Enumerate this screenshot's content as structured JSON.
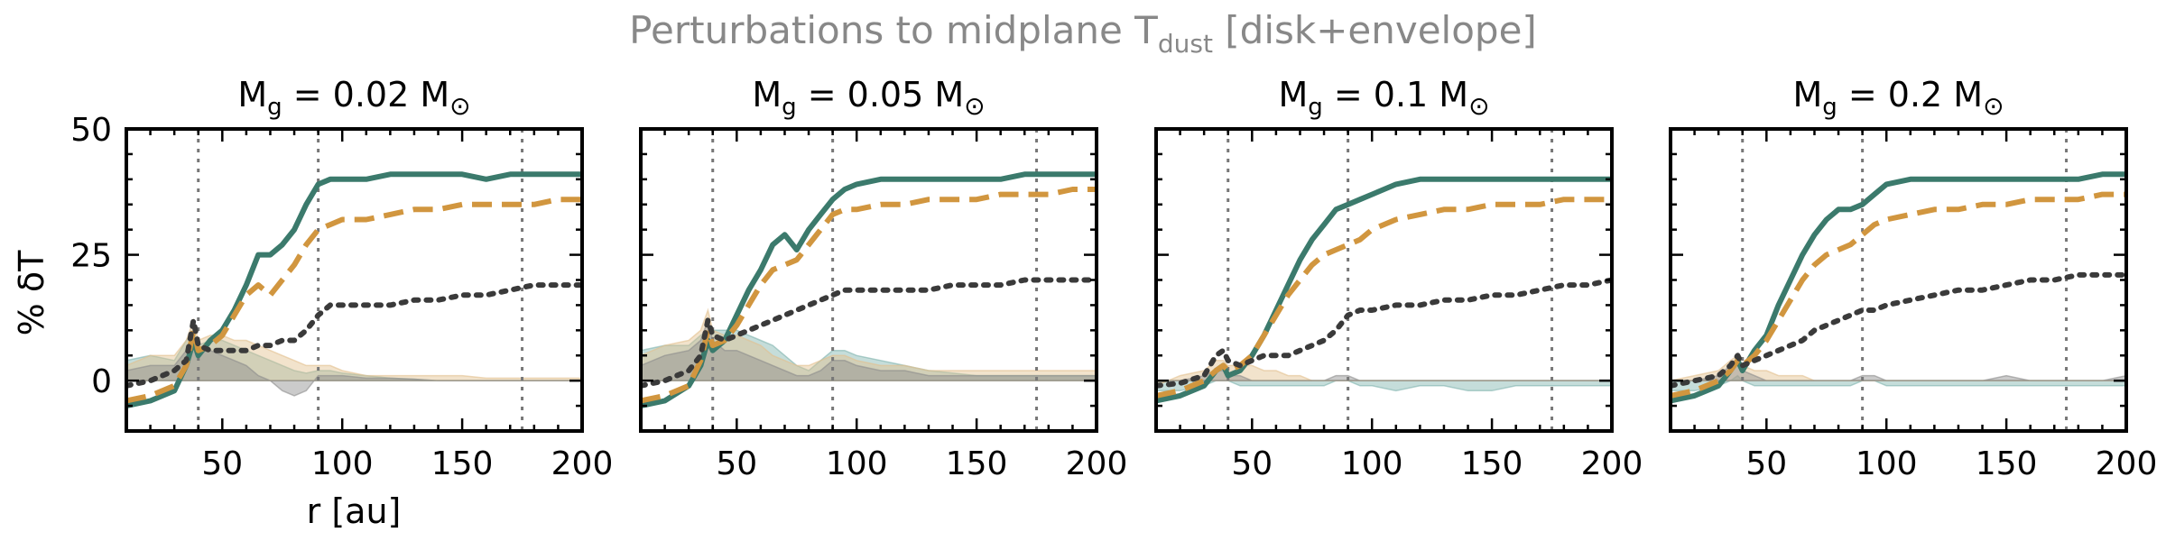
{
  "figure": {
    "suptitle_main": "Perturbations to midplane T",
    "suptitle_sub": "dust",
    "suptitle_tail": " [disk+envelope]",
    "ylabel": "% δT",
    "xlabel": "r [au]"
  },
  "colors": {
    "series_solid": "#3b7a6c",
    "series_dashed": "#d1963f",
    "series_dotted": "#3a3a3a",
    "band_teal": "#7fb3ad",
    "band_tan": "#e3c08e",
    "band_gray": "#8c8c8c",
    "vlines": "#777777",
    "zero_line": "#9a9a9a",
    "suptitle": "#888888"
  },
  "chart_data": [
    {
      "type": "line",
      "title_main": "M",
      "title_sub": "g",
      "title_eq": " = 0.02 M",
      "title_sun": "⊙",
      "xlim": [
        10,
        200
      ],
      "ylim": [
        -10,
        50
      ],
      "xticks": [
        50,
        100,
        150,
        200
      ],
      "yticks": [
        0,
        25,
        50
      ],
      "vlines": [
        40,
        90,
        175
      ],
      "x": [
        10,
        20,
        30,
        35,
        38,
        40,
        45,
        50,
        55,
        60,
        65,
        70,
        75,
        80,
        85,
        90,
        95,
        100,
        110,
        120,
        130,
        140,
        150,
        160,
        170,
        180,
        190,
        200
      ],
      "series": [
        {
          "style": "solid",
          "values": [
            -5,
            -4,
            -2,
            3,
            8,
            5,
            8,
            10,
            14,
            19,
            25,
            25,
            27,
            30,
            35,
            39,
            40,
            40,
            40,
            41,
            41,
            41,
            41,
            40,
            41,
            41,
            41,
            41
          ]
        },
        {
          "style": "dashed",
          "values": [
            -4,
            -3,
            -1,
            3,
            10,
            6,
            7,
            9,
            13,
            17,
            19,
            17,
            20,
            23,
            27,
            30,
            31,
            32,
            32,
            33,
            34,
            34,
            35,
            35,
            35,
            35,
            36,
            36
          ]
        },
        {
          "style": "dotted",
          "values": [
            -1,
            0,
            2,
            4,
            12,
            7,
            6,
            6,
            6,
            6,
            7,
            7,
            8,
            8,
            10,
            13,
            15,
            15,
            15,
            15,
            16,
            16,
            17,
            17,
            18,
            19,
            19,
            19
          ]
        }
      ],
      "bands": [
        {
          "color": "teal",
          "values": [
            4,
            5,
            4,
            8,
            10,
            7,
            8,
            8,
            7,
            6,
            5,
            4,
            3,
            2,
            1.5,
            2,
            2,
            1.5,
            1,
            0.5,
            0.3,
            0,
            0,
            0,
            0,
            0,
            0,
            0
          ]
        },
        {
          "color": "tan",
          "values": [
            3,
            5,
            5,
            8,
            12,
            8,
            9,
            9,
            8,
            8,
            7,
            6,
            5,
            4,
            3,
            3,
            3,
            2,
            1,
            1,
            1,
            1,
            1,
            0.5,
            0.5,
            0.5,
            0.5,
            0.5
          ]
        },
        {
          "color": "gray",
          "values": [
            2,
            3,
            3,
            6,
            9,
            6,
            6,
            5,
            4,
            3,
            1,
            0,
            -2,
            -3,
            -2,
            1,
            1,
            1,
            0.5,
            0.5,
            0.3,
            0,
            0,
            0,
            0,
            0,
            0,
            0
          ]
        }
      ]
    },
    {
      "type": "line",
      "title_main": "M",
      "title_sub": "g",
      "title_eq": " = 0.05 M",
      "title_sun": "⊙",
      "xlim": [
        10,
        200
      ],
      "ylim": [
        -10,
        50
      ],
      "xticks": [
        50,
        100,
        150,
        200
      ],
      "yticks": [
        0,
        25,
        50
      ],
      "vlines": [
        40,
        90,
        175
      ],
      "x": [
        10,
        20,
        30,
        35,
        38,
        40,
        45,
        50,
        55,
        60,
        65,
        70,
        75,
        80,
        85,
        90,
        95,
        100,
        110,
        120,
        130,
        140,
        150,
        160,
        170,
        180,
        190,
        200
      ],
      "series": [
        {
          "style": "solid",
          "values": [
            -5,
            -4,
            -1,
            3,
            8,
            6,
            8,
            13,
            18,
            22,
            27,
            29,
            26,
            30,
            33,
            36,
            38,
            39,
            40,
            40,
            40,
            40,
            40,
            40,
            41,
            41,
            41,
            41
          ]
        },
        {
          "style": "dashed",
          "values": [
            -4,
            -3,
            -1,
            4,
            10,
            7,
            8,
            11,
            15,
            19,
            22,
            23,
            24,
            27,
            30,
            33,
            34,
            34,
            35,
            35,
            36,
            36,
            36,
            37,
            37,
            37,
            38,
            38
          ]
        },
        {
          "style": "dotted",
          "values": [
            -1,
            0,
            2,
            5,
            12,
            9,
            8,
            9,
            10,
            11,
            12,
            13,
            14,
            15,
            16,
            17,
            18,
            18,
            18,
            18,
            18,
            19,
            19,
            19,
            20,
            20,
            20,
            20
          ]
        }
      ],
      "bands": [
        {
          "color": "teal",
          "values": [
            6,
            7,
            7,
            9,
            10,
            10,
            10,
            10,
            9,
            8,
            7,
            5,
            3,
            2,
            4,
            6,
            6,
            5,
            4,
            3,
            2,
            1.5,
            1,
            1,
            1,
            1,
            1,
            1
          ]
        },
        {
          "color": "tan",
          "values": [
            5,
            7,
            8,
            10,
            14,
            10,
            9,
            9,
            8,
            7,
            5,
            4,
            3,
            3,
            4,
            5,
            5,
            4,
            3,
            3,
            2,
            2,
            2,
            2,
            2,
            2,
            2,
            2
          ]
        },
        {
          "color": "gray",
          "values": [
            3,
            5,
            6,
            8,
            12,
            8,
            6,
            6,
            5,
            4,
            3,
            2,
            1,
            1,
            2,
            4,
            4,
            3,
            2,
            2,
            1,
            1,
            1,
            1,
            1,
            1,
            1,
            1
          ]
        }
      ]
    },
    {
      "type": "line",
      "title_main": "M",
      "title_sub": "g",
      "title_eq": " = 0.1 M",
      "title_sun": "⊙",
      "xlim": [
        10,
        200
      ],
      "ylim": [
        -10,
        50
      ],
      "xticks": [
        50,
        100,
        150,
        200
      ],
      "yticks": [
        0,
        25,
        50
      ],
      "vlines": [
        40,
        90,
        175
      ],
      "x": [
        10,
        20,
        30,
        35,
        38,
        40,
        45,
        50,
        55,
        60,
        65,
        70,
        75,
        80,
        85,
        90,
        95,
        100,
        110,
        120,
        130,
        140,
        150,
        160,
        170,
        180,
        190,
        200
      ],
      "series": [
        {
          "style": "solid",
          "values": [
            -4,
            -3,
            -1,
            2,
            3,
            1,
            2,
            5,
            9,
            14,
            19,
            24,
            28,
            31,
            34,
            35,
            36,
            37,
            39,
            40,
            40,
            40,
            40,
            40,
            40,
            40,
            40,
            40
          ]
        },
        {
          "style": "dashed",
          "values": [
            -3,
            -2,
            0,
            2,
            3,
            2,
            3,
            5,
            9,
            13,
            17,
            20,
            23,
            25,
            26,
            27,
            28,
            30,
            32,
            33,
            34,
            34,
            35,
            35,
            35,
            36,
            36,
            36
          ]
        },
        {
          "style": "dotted",
          "values": [
            -1,
            -0.5,
            1,
            5,
            6,
            4,
            3,
            4,
            5,
            5,
            5,
            6,
            7,
            8,
            10,
            13,
            14,
            14,
            15,
            15,
            16,
            16,
            17,
            17,
            18,
            19,
            19,
            20
          ]
        }
      ],
      "bands": [
        {
          "color": "teal",
          "values": [
            -2,
            -2,
            -1,
            0,
            0,
            0,
            -1,
            -1,
            -1,
            -1,
            -1,
            -1,
            -1,
            -1,
            0,
            0,
            -1,
            -1,
            -2,
            -1,
            -1,
            -2,
            -2,
            -1,
            -1,
            -1,
            -1,
            -1
          ]
        },
        {
          "color": "tan",
          "values": [
            -1,
            1,
            2,
            4,
            4,
            3,
            3,
            3,
            2,
            2,
            1,
            1,
            0,
            0,
            0,
            0,
            0,
            0,
            0,
            0,
            0,
            0,
            0,
            0,
            0,
            0,
            0,
            0
          ]
        },
        {
          "color": "gray",
          "values": [
            0,
            0,
            1,
            2,
            2,
            1,
            1,
            0,
            0,
            0,
            0,
            0,
            0,
            0,
            1,
            1,
            0,
            0,
            0,
            0,
            0,
            0,
            0,
            0,
            0,
            0,
            0,
            0
          ]
        }
      ]
    },
    {
      "type": "line",
      "title_main": "M",
      "title_sub": "g",
      "title_eq": " = 0.2 M",
      "title_sun": "⊙",
      "xlim": [
        10,
        200
      ],
      "ylim": [
        -10,
        50
      ],
      "xticks": [
        50,
        100,
        150,
        200
      ],
      "yticks": [
        0,
        25,
        50
      ],
      "vlines": [
        40,
        90,
        175
      ],
      "x": [
        10,
        20,
        30,
        35,
        38,
        40,
        45,
        50,
        55,
        60,
        65,
        70,
        75,
        80,
        85,
        90,
        95,
        100,
        110,
        120,
        130,
        140,
        150,
        160,
        170,
        180,
        190,
        200
      ],
      "series": [
        {
          "style": "solid",
          "values": [
            -4,
            -3,
            -1,
            2,
            4,
            2,
            6,
            9,
            15,
            20,
            25,
            29,
            32,
            34,
            34,
            35,
            37,
            39,
            40,
            40,
            40,
            40,
            40,
            40,
            40,
            40,
            41,
            41
          ]
        },
        {
          "style": "dashed",
          "values": [
            -3,
            -2,
            0,
            2,
            4,
            3,
            5,
            8,
            12,
            16,
            20,
            23,
            25,
            26,
            27,
            29,
            31,
            32,
            33,
            34,
            34,
            35,
            35,
            36,
            36,
            36,
            37,
            37
          ]
        },
        {
          "style": "dotted",
          "values": [
            -1,
            0,
            1,
            3,
            5,
            3,
            4,
            5,
            6,
            7,
            8,
            10,
            11,
            12,
            13,
            14,
            14,
            15,
            16,
            17,
            18,
            18,
            19,
            20,
            20,
            21,
            21,
            21
          ]
        }
      ],
      "bands": [
        {
          "color": "teal",
          "values": [
            -2,
            -2,
            -1,
            0,
            1,
            0,
            -1,
            -1,
            -1,
            -1,
            -1,
            -1,
            -1,
            -1,
            -1,
            0,
            0,
            -1,
            -1,
            -1,
            -1,
            -1,
            -1,
            -1,
            -1,
            -1,
            -1,
            -1
          ]
        },
        {
          "color": "tan",
          "values": [
            0,
            1,
            2,
            4,
            5,
            3,
            2,
            2,
            1,
            1,
            1,
            0,
            0,
            0,
            0,
            0,
            0,
            0,
            0,
            0,
            0,
            0,
            0,
            0,
            0,
            0,
            0,
            0
          ]
        },
        {
          "color": "gray",
          "values": [
            0,
            0,
            1,
            3,
            4,
            2,
            1,
            0,
            0,
            0,
            0,
            0,
            0,
            0,
            0,
            1,
            1,
            0,
            0,
            0,
            0,
            0,
            1,
            0,
            0,
            0,
            0,
            1
          ]
        }
      ]
    }
  ]
}
